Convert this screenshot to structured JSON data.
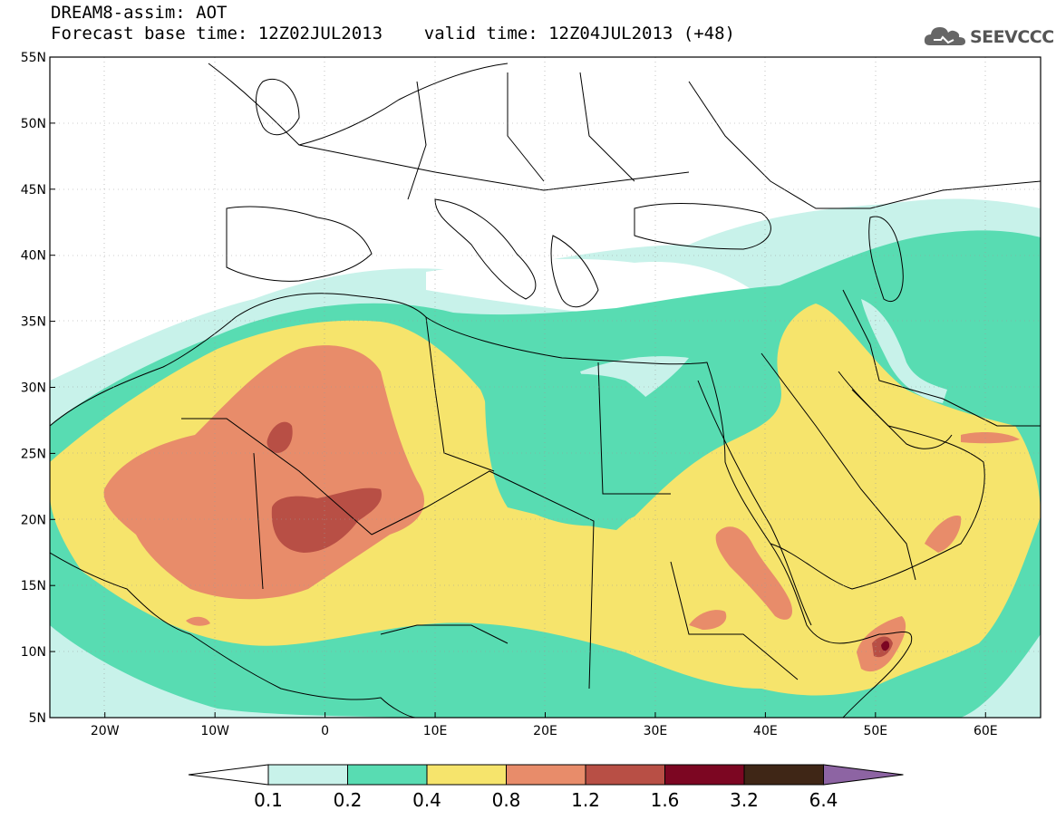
{
  "title": {
    "line1": "DREAM8-assim: AOT",
    "line2": "Forecast base time: 12Z02JUL2013    valid time: 12Z04JUL2013 (+48)"
  },
  "logo": {
    "text": "SEEVCCC",
    "icon": "cloud-icon"
  },
  "map": {
    "lon_range": [
      -25,
      65
    ],
    "lat_range": [
      5,
      55
    ],
    "lat_ticks": [
      "5N",
      "10N",
      "15N",
      "20N",
      "25N",
      "30N",
      "35N",
      "40N",
      "45N",
      "50N",
      "55N"
    ],
    "lon_ticks": [
      "20W",
      "10W",
      "0",
      "10E",
      "20E",
      "30E",
      "40E",
      "50E",
      "60E"
    ]
  },
  "colorbar": {
    "labels": [
      "0.1",
      "0.2",
      "0.4",
      "0.8",
      "1.2",
      "1.6",
      "3.2",
      "6.4"
    ],
    "colors": [
      "#c8f2ea",
      "#58dcb2",
      "#f6e46c",
      "#e88c6a",
      "#b84f45",
      "#7c0622",
      "#3f2616"
    ],
    "under_color": "#ffffff",
    "over_color": "#8d64a3"
  },
  "colors": {
    "background": "#ffffff",
    "c1": "#c8f2ea",
    "c2": "#58dcb2",
    "c3": "#f6e46c",
    "c4": "#e88c6a",
    "c5": "#b84f45",
    "c6": "#7c0622",
    "border": "#000000"
  }
}
